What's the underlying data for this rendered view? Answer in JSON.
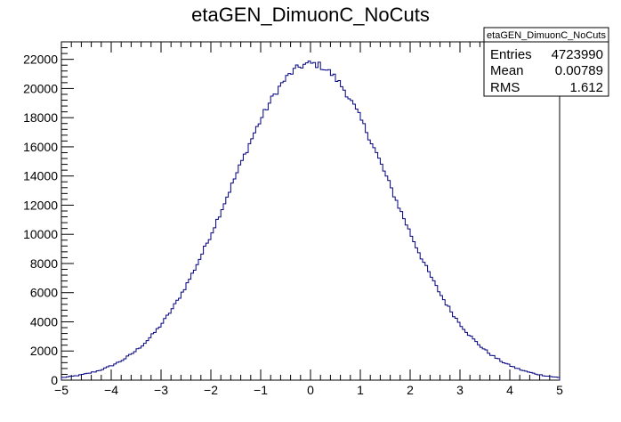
{
  "chart_data": {
    "type": "bar",
    "title": "etaGEN_DimuonC_NoCuts",
    "xlabel": "",
    "ylabel": "",
    "xlim": [
      -5,
      5
    ],
    "ylim": [
      0,
      23200
    ],
    "x_ticks": [
      -5,
      -4,
      -3,
      -2,
      -1,
      0,
      1,
      2,
      3,
      4,
      5
    ],
    "x_tick_labels": [
      "−5",
      "−4",
      "−3",
      "−2",
      "−1",
      "0",
      "1",
      "2",
      "3",
      "4",
      "5"
    ],
    "y_ticks": [
      0,
      2000,
      4000,
      6000,
      8000,
      10000,
      12000,
      14000,
      16000,
      18000,
      20000,
      22000
    ],
    "y_tick_labels": [
      "0",
      "2000",
      "4000",
      "6000",
      "8000",
      "10000",
      "12000",
      "14000",
      "16000",
      "18000",
      "20000",
      "22000"
    ],
    "grid": false,
    "line_color": "#000080",
    "histogram": {
      "bins": 200,
      "x_min": -5,
      "x_max": 5,
      "shape": "gaussian",
      "peak": 21700,
      "mean": 0.0079,
      "sigma": 1.612,
      "noise": 250
    },
    "stats": {
      "name": "etaGEN_DimuonC_NoCuts",
      "rows": [
        {
          "label": "Entries",
          "value": "4723990"
        },
        {
          "label": "Mean",
          "value": "0.00789"
        },
        {
          "label": "RMS",
          "value": "1.612"
        }
      ]
    }
  }
}
